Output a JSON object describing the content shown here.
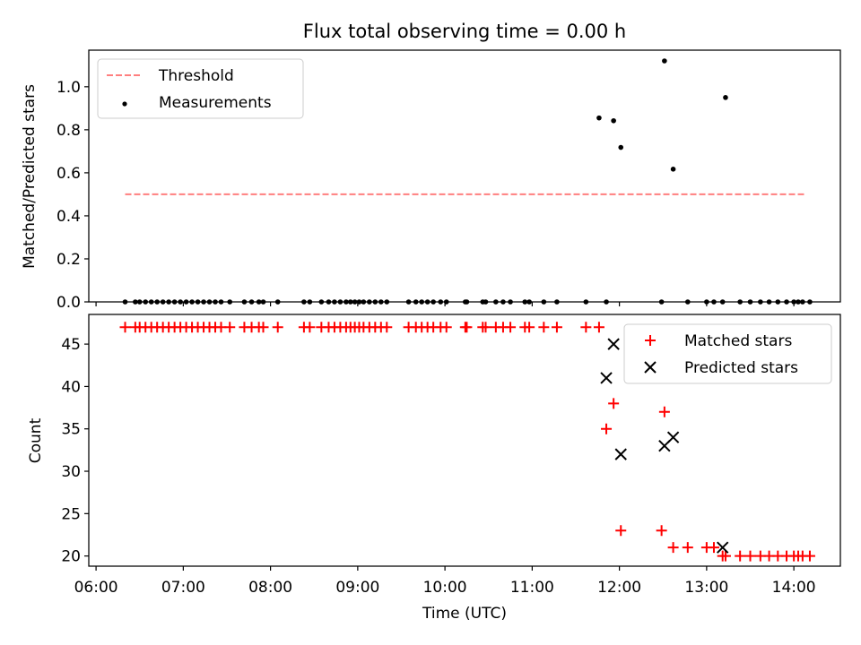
{
  "chart_data": [
    {
      "type": "scatter",
      "title": "Flux total observing time = 0.00 h",
      "xlabel": "",
      "ylabel": "Matched/Predicted stars",
      "ylim": [
        0,
        1.17
      ],
      "xlim": [
        "05:55",
        "14:32"
      ],
      "yticks": [
        "0.0",
        "0.2",
        "0.4",
        "0.6",
        "0.8",
        "1.0"
      ],
      "legend_position": "upper-left",
      "colors": {
        "threshold": "#ff7f7f",
        "measurements": "#000000"
      },
      "series": [
        {
          "name": "Threshold",
          "style": "dashed-line",
          "x": [
            "06:20",
            "14:07"
          ],
          "y": [
            0.5,
            0.5
          ]
        },
        {
          "name": "Measurements",
          "style": "dot",
          "x": [
            "06:20",
            "06:27",
            "06:30",
            "06:34",
            "06:38",
            "06:42",
            "06:46",
            "06:50",
            "06:54",
            "06:58",
            "07:02",
            "07:06",
            "07:10",
            "07:14",
            "07:18",
            "07:22",
            "07:26",
            "07:32",
            "07:42",
            "07:47",
            "07:52",
            "07:55",
            "08:05",
            "08:23",
            "08:27",
            "08:35",
            "08:40",
            "08:44",
            "08:48",
            "08:52",
            "08:55",
            "08:58",
            "09:01",
            "09:04",
            "09:08",
            "09:12",
            "09:16",
            "09:20",
            "09:35",
            "09:40",
            "09:44",
            "09:48",
            "09:52",
            "09:57",
            "10:01",
            "10:14",
            "10:15",
            "10:26",
            "10:28",
            "10:35",
            "10:40",
            "10:45",
            "10:55",
            "10:58",
            "11:08",
            "11:17",
            "11:37",
            "11:46",
            "11:51",
            "11:56",
            "12:01",
            "12:29",
            "12:31",
            "12:37",
            "12:47",
            "13:00",
            "13:05",
            "13:11",
            "13:13",
            "13:23",
            "13:30",
            "13:37",
            "13:43",
            "13:49",
            "13:55",
            "14:00",
            "14:03",
            "14:06",
            "14:11"
          ],
          "y": [
            0,
            0,
            0,
            0,
            0,
            0,
            0,
            0,
            0,
            0,
            0,
            0,
            0,
            0,
            0,
            0,
            0,
            0,
            0,
            0,
            0,
            0,
            0,
            0,
            0,
            0,
            0,
            0,
            0,
            0,
            0,
            0,
            0,
            0,
            0,
            0,
            0,
            0,
            0,
            0,
            0,
            0,
            0,
            0,
            0,
            0,
            0,
            0,
            0,
            0,
            0,
            0,
            0,
            0,
            0,
            0,
            0,
            0.855,
            0,
            0.842,
            0.718,
            0,
            1.12,
            0.617,
            0,
            0,
            0,
            0,
            0.95,
            0,
            0,
            0,
            0,
            0,
            0,
            0,
            0,
            0,
            0
          ]
        }
      ]
    },
    {
      "type": "scatter",
      "title": "",
      "xlabel": "Time (UTC)",
      "ylabel": "Count",
      "ylim": [
        18.8,
        48.5
      ],
      "xlim": [
        "05:55",
        "14:32"
      ],
      "xticks": [
        "06:00",
        "07:00",
        "08:00",
        "09:00",
        "10:00",
        "11:00",
        "12:00",
        "13:00",
        "14:00"
      ],
      "yticks": [
        "20",
        "25",
        "30",
        "35",
        "40",
        "45"
      ],
      "legend_position": "upper-right",
      "colors": {
        "matched": "#ff0000",
        "predicted": "#000000"
      },
      "series": [
        {
          "name": "Matched stars",
          "marker": "plus",
          "x": [
            "06:20",
            "06:27",
            "06:30",
            "06:34",
            "06:38",
            "06:42",
            "06:46",
            "06:50",
            "06:54",
            "06:58",
            "07:02",
            "07:06",
            "07:10",
            "07:14",
            "07:18",
            "07:22",
            "07:26",
            "07:32",
            "07:42",
            "07:47",
            "07:52",
            "07:55",
            "08:05",
            "08:23",
            "08:27",
            "08:35",
            "08:40",
            "08:44",
            "08:48",
            "08:52",
            "08:55",
            "08:58",
            "09:01",
            "09:04",
            "09:08",
            "09:12",
            "09:16",
            "09:20",
            "09:35",
            "09:40",
            "09:44",
            "09:48",
            "09:52",
            "09:57",
            "10:01",
            "10:14",
            "10:15",
            "10:26",
            "10:28",
            "10:35",
            "10:40",
            "10:45",
            "10:55",
            "10:58",
            "11:08",
            "11:17",
            "11:37",
            "11:46",
            "11:51",
            "11:56",
            "12:01",
            "12:29",
            "12:31",
            "12:37",
            "12:47",
            "13:00",
            "13:05",
            "13:11",
            "13:13",
            "13:23",
            "13:30",
            "13:37",
            "13:43",
            "13:49",
            "13:55",
            "14:00",
            "14:03",
            "14:06",
            "14:11"
          ],
          "y": [
            47,
            47,
            47,
            47,
            47,
            47,
            47,
            47,
            47,
            47,
            47,
            47,
            47,
            47,
            47,
            47,
            47,
            47,
            47,
            47,
            47,
            47,
            47,
            47,
            47,
            47,
            47,
            47,
            47,
            47,
            47,
            47,
            47,
            47,
            47,
            47,
            47,
            47,
            47,
            47,
            47,
            47,
            47,
            47,
            47,
            47,
            47,
            47,
            47,
            47,
            47,
            47,
            47,
            47,
            47,
            47,
            47,
            47,
            35,
            38,
            23,
            23,
            37,
            21,
            21,
            21,
            21,
            20,
            20,
            20,
            20,
            20,
            20,
            20,
            20,
            20,
            20,
            20,
            20
          ]
        },
        {
          "name": "Predicted stars",
          "marker": "x",
          "x": [
            "11:51",
            "11:56",
            "12:01",
            "12:31",
            "12:37",
            "13:11"
          ],
          "y": [
            41,
            45,
            32,
            33,
            34,
            21
          ]
        }
      ]
    }
  ]
}
